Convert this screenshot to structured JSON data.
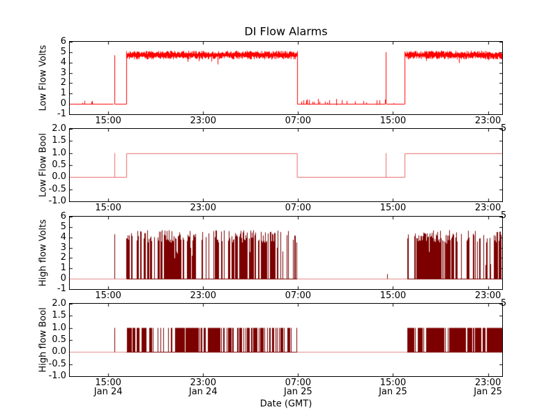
{
  "chart_title": "DI Flow Alarms",
  "x_axis": {
    "label": "Date (GMT)",
    "range_hours": [
      11.76,
      48.2
    ],
    "tick_hours": [
      15,
      23,
      31,
      39,
      47
    ],
    "tick_time_labels": [
      "15:00",
      "23:00",
      "07:00",
      "15:00",
      "23:00"
    ],
    "tick_date_labels": [
      "Jan 24",
      "Jan 24",
      "Jan 25",
      "Jan 25",
      "Jan 25"
    ],
    "overflow_char": "5"
  },
  "chart_data": [
    {
      "type": "line",
      "ylabel": "Low Flow Volts",
      "ylim": [
        -1,
        6
      ],
      "yticks": [
        6,
        5,
        4,
        3,
        2,
        1,
        0,
        -1
      ],
      "ytick_labels": [
        "6",
        "5",
        "4",
        "3",
        "2",
        "1",
        "0",
        "-1"
      ],
      "color": "#ff0000",
      "seed": 101,
      "segments": [
        {
          "kind": "quiet",
          "t": [
            11.76,
            15.45
          ],
          "density": 0.05,
          "max": 0.3
        },
        {
          "kind": "spike",
          "t": 15.5,
          "v": 4.7
        },
        {
          "kind": "quiet",
          "t": [
            15.55,
            16.55
          ],
          "density": 0.04,
          "max": 0.25
        },
        {
          "kind": "noisy",
          "t": [
            16.55,
            30.93
          ],
          "base": 4.72,
          "amp": 0.42
        },
        {
          "kind": "quiet",
          "t": [
            30.93,
            38.35
          ],
          "density": 0.15,
          "max": 0.5
        },
        {
          "kind": "spike",
          "t": 38.4,
          "v": 5.0
        },
        {
          "kind": "quiet",
          "t": [
            38.45,
            40.0
          ],
          "density": 0.05,
          "max": 0.3
        },
        {
          "kind": "noisy",
          "t": [
            40.0,
            48.2
          ],
          "base": 4.72,
          "amp": 0.42
        }
      ]
    },
    {
      "type": "line",
      "ylabel": "Low Flow Bool",
      "ylim": [
        -1,
        2
      ],
      "yticks": [
        2,
        1.5,
        1,
        0.5,
        0,
        -0.5,
        -1
      ],
      "ytick_labels": [
        "2.0",
        "1.5",
        "1.0",
        "0.5",
        "0.0",
        "-0.5",
        "-1.0"
      ],
      "color": "#e96a6a",
      "connect_levels": true,
      "seed": 202,
      "segments": [
        {
          "kind": "level",
          "t": [
            11.76,
            16.55
          ],
          "v": 0
        },
        {
          "kind": "spike",
          "t": 15.5,
          "v": 1
        },
        {
          "kind": "level",
          "t": [
            16.55,
            30.93
          ],
          "v": 1
        },
        {
          "kind": "level",
          "t": [
            30.93,
            40.0
          ],
          "v": 0
        },
        {
          "kind": "spike",
          "t": 38.4,
          "v": 1
        },
        {
          "kind": "level",
          "t": [
            40.0,
            48.2
          ],
          "v": 1
        }
      ]
    },
    {
      "type": "line",
      "ylabel": "High flow Volts",
      "ylim": [
        -1,
        6
      ],
      "yticks": [
        6,
        5,
        4,
        3,
        2,
        1,
        0,
        -1
      ],
      "ytick_labels": [
        "6",
        "5",
        "4",
        "3",
        "2",
        "1",
        "0",
        "-1"
      ],
      "color": "#7d0000",
      "baseline_color": "#e08a8a",
      "seed": 303,
      "segments": [
        {
          "kind": "level",
          "t": [
            11.76,
            16.55
          ],
          "v": 0
        },
        {
          "kind": "spike",
          "t": 15.5,
          "v": 4.3
        },
        {
          "kind": "burst",
          "t": [
            16.55,
            30.93
          ],
          "lo": 0,
          "hi": [
            3.5,
            4.7
          ]
        },
        {
          "kind": "level",
          "t": [
            30.93,
            40.2
          ],
          "v": 0
        },
        {
          "kind": "spike",
          "t": 38.5,
          "v": 0.45
        },
        {
          "kind": "burst",
          "t": [
            40.2,
            48.2
          ],
          "lo": 0,
          "hi": [
            3.5,
            4.7
          ]
        }
      ]
    },
    {
      "type": "line",
      "ylabel": "High flow Bool",
      "ylim": [
        -1,
        2
      ],
      "yticks": [
        2,
        1.5,
        1,
        0.5,
        0,
        -0.5,
        -1
      ],
      "ytick_labels": [
        "2.0",
        "1.5",
        "1.0",
        "0.5",
        "0.0",
        "-0.5",
        "-1.0"
      ],
      "color": "#7d0000",
      "baseline_color": "#e08a8a",
      "seed": 404,
      "segments": [
        {
          "kind": "level",
          "t": [
            11.76,
            16.55
          ],
          "v": 0
        },
        {
          "kind": "spike",
          "t": 15.5,
          "v": 1
        },
        {
          "kind": "burst",
          "t": [
            16.55,
            30.93
          ],
          "lo": 0,
          "hi": [
            1,
            1
          ]
        },
        {
          "kind": "level",
          "t": [
            30.93,
            40.2
          ],
          "v": 0
        },
        {
          "kind": "burst",
          "t": [
            40.2,
            48.2
          ],
          "lo": 0,
          "hi": [
            1,
            1
          ]
        }
      ]
    }
  ]
}
